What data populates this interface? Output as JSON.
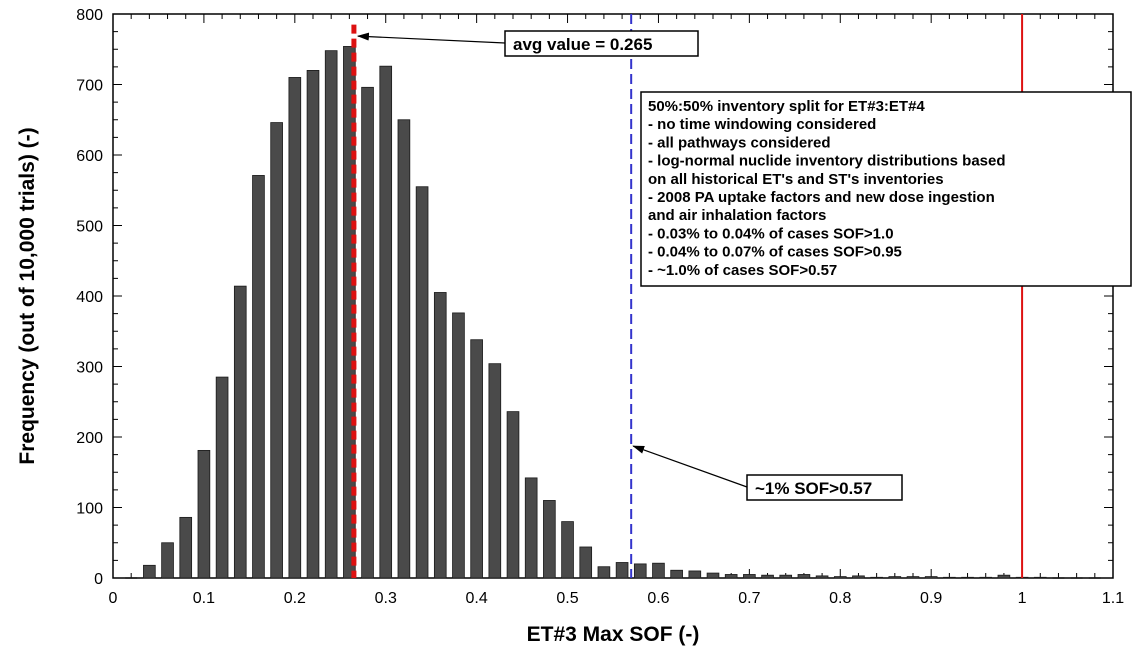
{
  "chart_data": {
    "type": "bar",
    "xlabel": "ET#3 Max SOF (-)",
    "ylabel": "Frequency (out of 10,000 trials) (-)",
    "xlim": [
      0,
      1.1
    ],
    "ylim": [
      0,
      800
    ],
    "xticks": [
      "0",
      "0.1",
      "0.2",
      "0.3",
      "0.4",
      "0.5",
      "0.6",
      "0.7",
      "0.8",
      "0.9",
      "1",
      "1.1"
    ],
    "yticks": [
      "0",
      "100",
      "200",
      "300",
      "400",
      "500",
      "600",
      "700",
      "800"
    ],
    "bar_width": 0.013,
    "bars_x": [
      0.02,
      0.04,
      0.06,
      0.08,
      0.1,
      0.12,
      0.14,
      0.16,
      0.18,
      0.2,
      0.22,
      0.24,
      0.26,
      0.28,
      0.3,
      0.32,
      0.34,
      0.36,
      0.38,
      0.4,
      0.42,
      0.44,
      0.46,
      0.48,
      0.5,
      0.52,
      0.54,
      0.56,
      0.58,
      0.6,
      0.62,
      0.64,
      0.66,
      0.68,
      0.7,
      0.72,
      0.74,
      0.76,
      0.78,
      0.8,
      0.82,
      0.84,
      0.86,
      0.88,
      0.9,
      0.92,
      0.94,
      0.96,
      0.98,
      1.0,
      1.02,
      1.04,
      1.06,
      1.08
    ],
    "bars_y": [
      0,
      18,
      50,
      86,
      181,
      285,
      414,
      571,
      646,
      710,
      720,
      748,
      754,
      696,
      726,
      650,
      555,
      405,
      376,
      338,
      304,
      236,
      142,
      110,
      80,
      44,
      16,
      22,
      20,
      21,
      11,
      10,
      7,
      5,
      5,
      4,
      4,
      5,
      3,
      2,
      3,
      1,
      2,
      2,
      2,
      1,
      1,
      1,
      4,
      1,
      1,
      0,
      0,
      0
    ],
    "reference_lines": [
      {
        "x": 0.265,
        "color": "#dd1111",
        "style": "dashed",
        "label": "avg value = 0.265"
      },
      {
        "x": 0.57,
        "color": "#3333cc",
        "style": "dashed",
        "label": "~1% SOF>0.57"
      },
      {
        "x": 1.0,
        "color": "#dd1111",
        "style": "solid"
      }
    ],
    "callouts": [
      {
        "text": "avg value = 0.265",
        "points_to": [
          0.265,
          780
        ]
      },
      {
        "text": "~1% SOF>0.57",
        "points_to": [
          0.57,
          190
        ]
      }
    ],
    "annotation_box": {
      "lines": [
        "50%:50% inventory split for ET#3:ET#4",
        "-  no time windowing considered",
        "-  all pathways considered",
        "-  log-normal nuclide inventory distributions based",
        "   on all historical ET's and ST's inventories",
        "-  2008 PA uptake factors and new dose ingestion",
        "   and air inhalation factors",
        "-  0.03% to 0.04% of cases SOF>1.0",
        "-  0.04% to 0.07% of cases SOF>0.95",
        "- ~1.0% of cases SOF>0.57"
      ]
    },
    "colors": {
      "bar": "#4a4a4a",
      "bar_edge": "#1a1a1a",
      "avg_line": "#dd1111",
      "p99_line": "#3333cc",
      "sof1_line": "#dd1111"
    }
  }
}
